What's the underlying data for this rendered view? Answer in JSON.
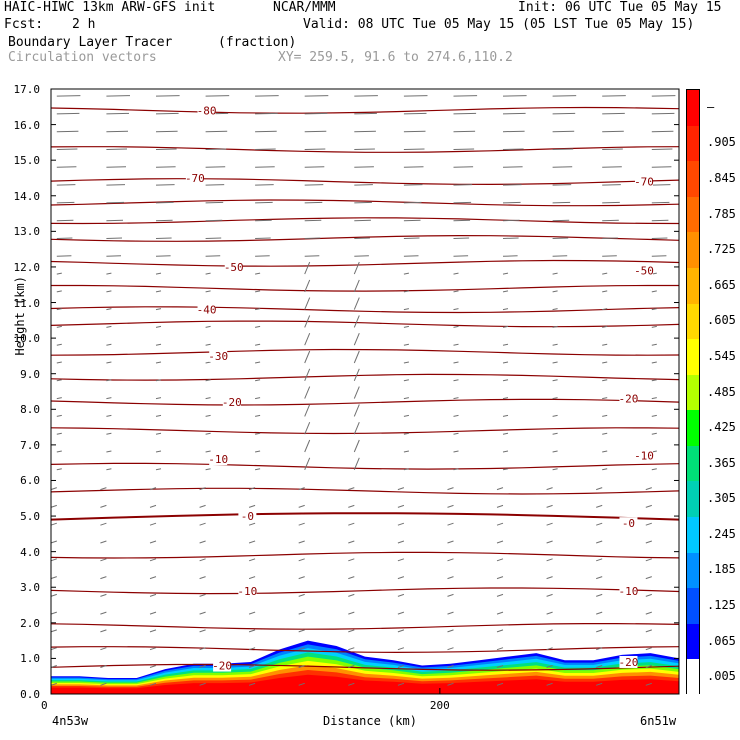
{
  "header": {
    "model": "HAIC-HIWC 13km ARW-GFS init",
    "org": "NCAR/MMM",
    "init": "Init: 06 UTC Tue 05 May 15",
    "fcst_label": "Fcst:",
    "fcst_value": "2 h",
    "valid": "Valid: 08 UTC Tue 05 May 15 (05 LST Tue 05 May 15)",
    "field": "Boundary Layer Tracer",
    "field_unit": "(fraction)",
    "vectors": "Circulation vectors",
    "xy": "XY= 259.5, 91.6 to 274.6,110.2"
  },
  "chart_data": {
    "type": "heatmap",
    "ylabel": "Height (km)",
    "xlabel": "Distance (km)",
    "ylim": [
      0,
      17
    ],
    "y_ticks": [
      "0.0",
      "1.0",
      "2.0",
      "3.0",
      "4.0",
      "5.0",
      "6.0",
      "7.0",
      "8.0",
      "9.0",
      "10.0",
      "11.0",
      "12.0",
      "13.0",
      "14.0",
      "15.0",
      "16.0",
      "17.0"
    ],
    "x_tick_labels": [
      "0",
      "200"
    ],
    "x_tick_values": [
      0,
      200
    ],
    "xlim": [
      0,
      323
    ],
    "x_end_labels": {
      "left": "4n53w",
      "right": "6n51w"
    },
    "colorbar": {
      "labels": [
        "–",
        ".905",
        ".845",
        ".785",
        ".725",
        ".665",
        ".605",
        ".545",
        ".485",
        ".425",
        ".365",
        ".305",
        ".245",
        ".185",
        ".125",
        ".065",
        ".005"
      ],
      "colors": [
        "#ff0000",
        "#ff2400",
        "#ff4800",
        "#ff6c00",
        "#ff9000",
        "#ffb400",
        "#ffd800",
        "#ffff00",
        "#b4ff00",
        "#00ff00",
        "#00e078",
        "#00d0b4",
        "#00c8ff",
        "#0090ff",
        "#0050ff",
        "#0000ff",
        "#ffffff"
      ]
    },
    "temperature_contours": {
      "color": "#8b0000",
      "labels": [
        {
          "value": "80",
          "x": 80,
          "y": 16.4
        },
        {
          "value": "70",
          "x": 74,
          "y": 14.5
        },
        {
          "value": "70",
          "x": 305,
          "y": 14.4
        },
        {
          "value": "50",
          "x": 94,
          "y": 12.0
        },
        {
          "value": "50",
          "x": 305,
          "y": 11.9
        },
        {
          "value": "40",
          "x": 80,
          "y": 10.8
        },
        {
          "value": "30",
          "x": 86,
          "y": 9.5
        },
        {
          "value": "20",
          "x": 93,
          "y": 8.2
        },
        {
          "value": "20",
          "x": 297,
          "y": 8.3
        },
        {
          "value": "10",
          "x": 86,
          "y": 6.6
        },
        {
          "value": "10",
          "x": 305,
          "y": 6.7
        },
        {
          "value": "0",
          "x": 101,
          "y": 5.0
        },
        {
          "value": "0",
          "x": 297,
          "y": 4.8
        },
        {
          "value": "10",
          "x": 101,
          "y": 2.9
        },
        {
          "value": "10",
          "x": 297,
          "y": 2.9
        },
        {
          "value": "20",
          "x": 88,
          "y": 0.8
        },
        {
          "value": "20",
          "x": 297,
          "y": 0.9
        }
      ],
      "levels_km": [
        0.75,
        1.25,
        1.9,
        2.9,
        3.9,
        4.9,
        5.7,
        6.4,
        7.4,
        8.2,
        8.9,
        9.6,
        10.4,
        10.8,
        11.4,
        12.1,
        12.8,
        13.3,
        13.8,
        14.4,
        15.3,
        16.4
      ]
    },
    "tracer_top_km": [
      0.5,
      0.5,
      0.45,
      0.45,
      0.7,
      0.85,
      0.85,
      0.9,
      1.25,
      1.5,
      1.35,
      1.05,
      0.95,
      0.8,
      0.85,
      0.95,
      1.05,
      1.15,
      0.95,
      0.95,
      1.1,
      1.15,
      1.0
    ]
  }
}
